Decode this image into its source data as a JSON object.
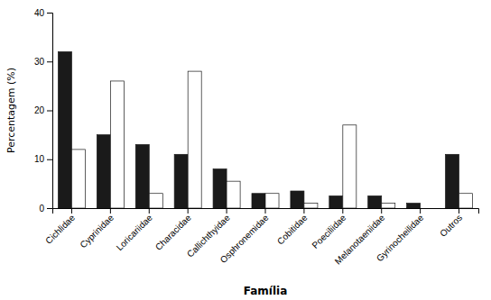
{
  "chart_data": {
    "type": "bar",
    "xlabel": "Família",
    "ylabel": "Percentagem (%)",
    "categories": [
      "Cichlidae",
      "Cyprinidae",
      "Loricariidae",
      "Characidae",
      "Callichthyidae",
      "Osphronemidae",
      "Cobitidae",
      "Poeciliidae",
      "Melanotaeniidae",
      "Gyrinocheilidae",
      "Outros"
    ],
    "series": [
      {
        "color": "#1a1a1a",
        "values": [
          32,
          15,
          13,
          11,
          8,
          3,
          3.5,
          2.5,
          2.5,
          1,
          11
        ]
      },
      {
        "color": "#ffffff",
        "values": [
          12,
          26,
          3,
          28,
          5.5,
          3,
          1,
          17,
          1,
          0,
          3
        ]
      }
    ],
    "ylim": [
      0,
      40
    ],
    "yticks": [
      0,
      10,
      20,
      30,
      40
    ],
    "grid": false
  }
}
